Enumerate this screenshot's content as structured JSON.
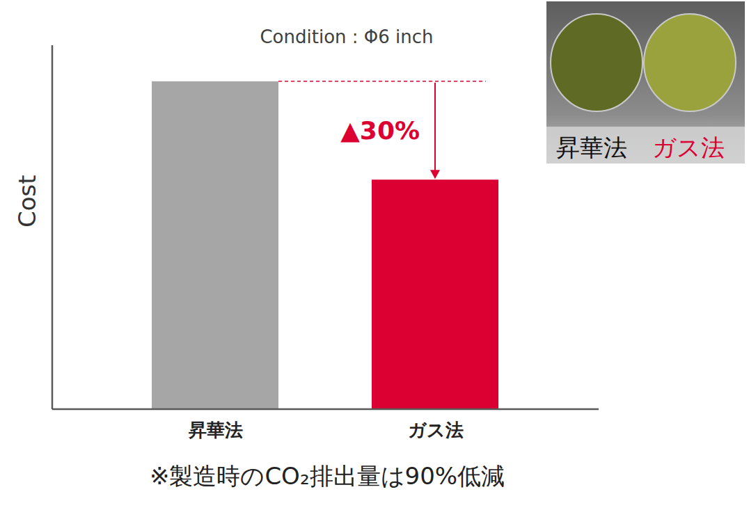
{
  "chart_data": {
    "type": "bar",
    "title": "Condition : Φ6 inch",
    "ylabel": "Cost",
    "categories": [
      "昇華法",
      "ガス法"
    ],
    "values": [
      100,
      70
    ],
    "colors": [
      "#a6a6a6",
      "#dc0032"
    ],
    "ylim": [
      0,
      111
    ],
    "yticks": [],
    "tick_labels": "x",
    "annotations": [
      "▲30%"
    ],
    "caption": "※製造時のCO₂排出量は90%低減"
  }
}
